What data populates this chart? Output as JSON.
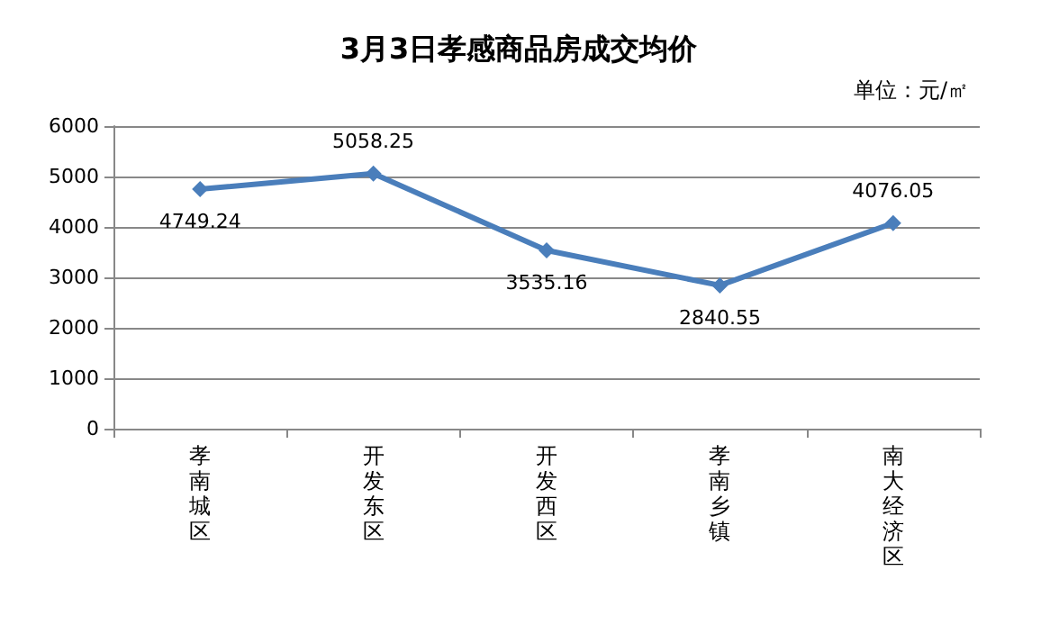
{
  "chart_data": {
    "type": "line",
    "title": "3月3日孝感商品房成交均价",
    "annotations": [
      "单位：元/㎡"
    ],
    "categories": [
      "孝南城区",
      "开发东区",
      "开发西区",
      "孝南乡镇",
      "南大经济区"
    ],
    "series": [
      {
        "color": "#4a7ebb",
        "values": [
          4749.24,
          5058.25,
          3535.16,
          2840.55,
          4076.05
        ]
      }
    ],
    "ylim": [
      0,
      6000
    ],
    "yticks": [
      0,
      1000,
      2000,
      3000,
      4000,
      5000,
      6000
    ],
    "grid": "y",
    "marker": "diamond",
    "line_style": "solid",
    "data_labels": true
  }
}
